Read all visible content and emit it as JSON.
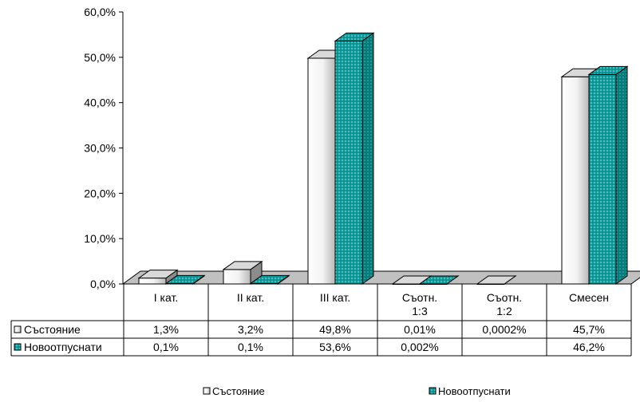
{
  "chart_data": {
    "type": "bar",
    "categories": [
      "I кат.",
      "II кат.",
      "III кат.",
      "Съотн.\n1:3",
      "Съотн.\n1:2",
      "Смесен"
    ],
    "series": [
      {
        "name": "Състояние",
        "values": [
          1.3,
          3.2,
          49.8,
          0.01,
          0.0002,
          45.7
        ],
        "labels": [
          "1,3%",
          "3,2%",
          "49,8%",
          "0,01%",
          "0,0002%",
          "45,7%"
        ],
        "color": "#ffffff"
      },
      {
        "name": "Новоотпуснати",
        "values": [
          0.1,
          0.1,
          53.6,
          0.002,
          null,
          46.2
        ],
        "labels": [
          "0,1%",
          "0,1%",
          "53,6%",
          "0,002%",
          "",
          "46,2%"
        ],
        "color": "#009999"
      }
    ],
    "y_ticks": [
      "0,0%",
      "10,0%",
      "20,0%",
      "30,0%",
      "40,0%",
      "50,0%",
      "60,0%"
    ],
    "ylim": [
      0,
      60
    ],
    "legend": "bottom",
    "data_table": true,
    "grid": false
  }
}
